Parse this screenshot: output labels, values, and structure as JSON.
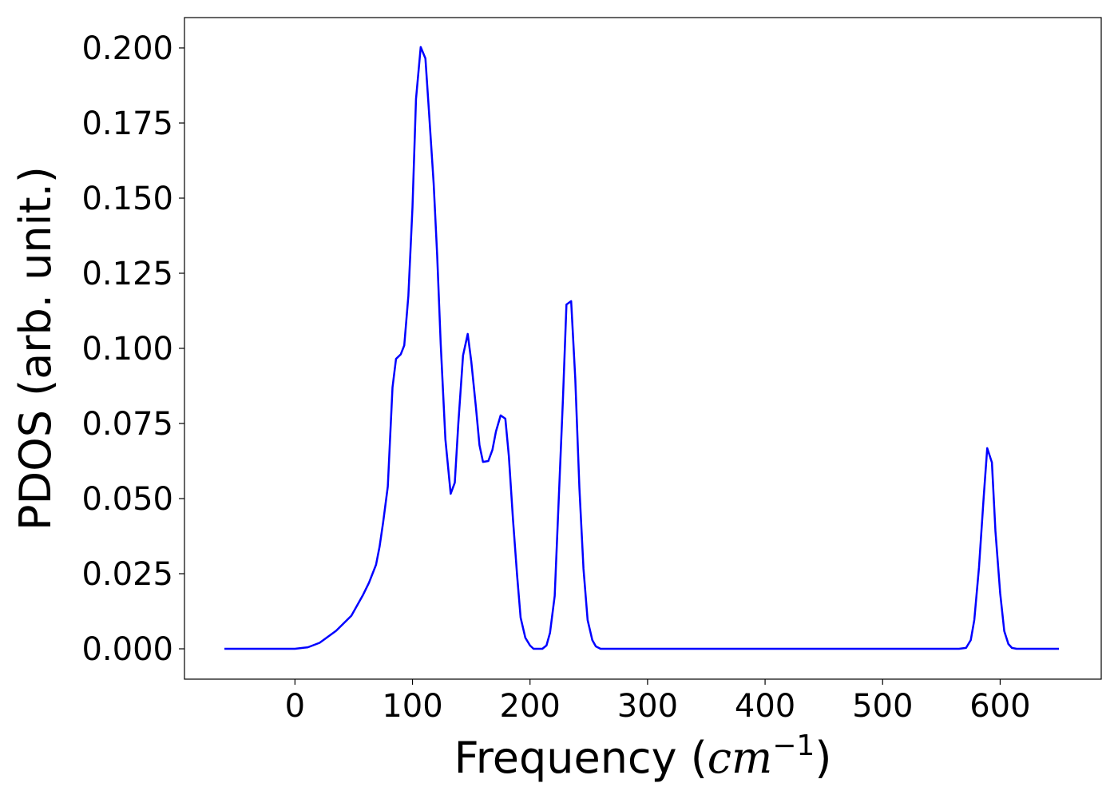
{
  "chart_data": {
    "type": "line",
    "xlabel": [
      "Frequency (",
      "cm",
      "−1",
      ")"
    ],
    "ylabel": "PDOS (arb. unit.)",
    "x": [
      -60,
      0,
      11,
      21,
      35,
      48,
      58,
      63,
      69,
      72,
      75,
      79,
      83,
      86,
      90,
      93,
      96.5,
      100,
      103,
      107,
      111,
      114,
      118,
      121,
      124,
      128,
      132.5,
      136,
      139,
      143,
      147,
      150,
      154,
      157,
      160,
      164.5,
      168,
      171,
      175,
      179,
      182,
      185.5,
      189,
      192,
      196,
      200,
      203,
      210.5,
      214,
      217,
      221,
      224,
      228,
      231,
      235,
      238.5,
      242,
      245.5,
      249,
      253,
      256,
      260,
      565,
      571,
      575,
      578,
      582,
      586,
      589,
      593,
      596,
      600,
      603.5,
      607,
      610,
      614,
      650
    ],
    "series": [
      {
        "color": "#0000ff",
        "values": [
          0,
          0,
          0.0005,
          0.002,
          0.006,
          0.011,
          0.018,
          0.022,
          0.028,
          0.034,
          0.042,
          0.054,
          0.087,
          0.0965,
          0.098,
          0.101,
          0.1175,
          0.147,
          0.183,
          0.2003,
          0.1965,
          0.179,
          0.155,
          0.131,
          0.1016,
          0.0697,
          0.0516,
          0.0553,
          0.075,
          0.0976,
          0.1048,
          0.0957,
          0.0803,
          0.0678,
          0.0622,
          0.0625,
          0.0662,
          0.0723,
          0.0777,
          0.0766,
          0.0641,
          0.0431,
          0.0245,
          0.0104,
          0.0037,
          0.0011,
          0,
          0,
          0.0011,
          0.0053,
          0.0176,
          0.0457,
          0.083,
          0.1146,
          0.1157,
          0.0899,
          0.0537,
          0.0266,
          0.0096,
          0.0029,
          0.0008,
          0,
          0,
          0.0003,
          0.0029,
          0.0096,
          0.0271,
          0.0505,
          0.0668,
          0.062,
          0.0391,
          0.0186,
          0.0059,
          0.0016,
          0.0003,
          0,
          0
        ]
      }
    ],
    "xlim": [
      -94,
      686
    ],
    "ylim": [
      -0.0101,
      0.2101
    ],
    "xticks": [
      0,
      100,
      200,
      300,
      400,
      500,
      600
    ],
    "yticks": [
      {
        "value": 0,
        "label": "0.000"
      },
      {
        "value": 0.025,
        "label": "0.025"
      },
      {
        "value": 0.05,
        "label": "0.050"
      },
      {
        "value": 0.075,
        "label": "0.075"
      },
      {
        "value": 0.1,
        "label": "0.100"
      },
      {
        "value": 0.125,
        "label": "0.125"
      },
      {
        "value": 0.15,
        "label": "0.150"
      },
      {
        "value": 0.175,
        "label": "0.175"
      },
      {
        "value": 0.2,
        "label": "0.200"
      }
    ],
    "grid": false
  }
}
